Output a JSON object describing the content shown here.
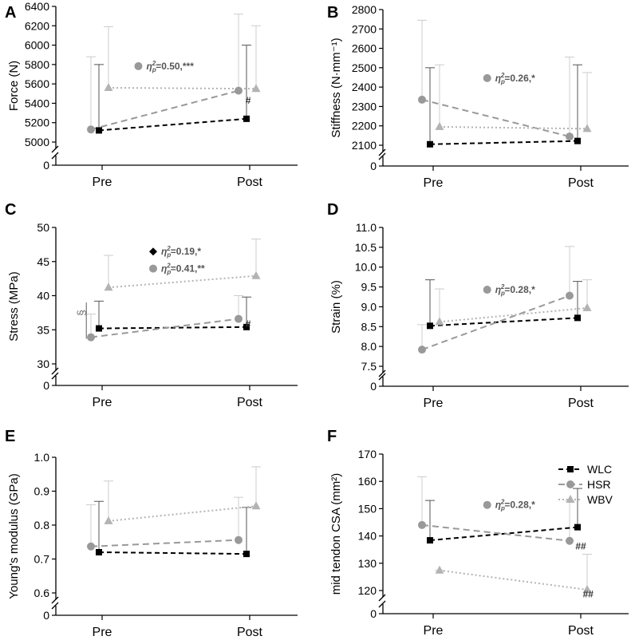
{
  "colors": {
    "WLC": "#000000",
    "HSR": "#999999",
    "WBV": "#b3b3b3",
    "axis": "#000000"
  },
  "legend_entries": [
    "WLC",
    "HSR",
    "WBV"
  ],
  "chart_data": [
    {
      "type": "line",
      "panel": "A",
      "ylabel": "Force (N)",
      "categories": [
        "Pre",
        "Post"
      ],
      "ylim": [
        5000,
        6400
      ],
      "yticks": [
        5000,
        5200,
        5400,
        5600,
        5800,
        6000,
        6200,
        6400
      ],
      "break_zero": "0",
      "series": [
        {
          "name": "WLC",
          "values": [
            5120,
            5240
          ],
          "errors": [
            5800,
            6000
          ]
        },
        {
          "name": "HSR",
          "values": [
            5130,
            5530
          ],
          "errors": [
            5880,
            6320
          ]
        },
        {
          "name": "WBV",
          "values": [
            5560,
            5550
          ],
          "errors": [
            6190,
            6200
          ]
        }
      ],
      "annotations": [
        {
          "text": "ηp²=0.50,***",
          "marker": "HSR",
          "data_x": 0.3,
          "data_y": 5750
        },
        {
          "text": "#",
          "data_x": 0.99,
          "data_y": 5395
        }
      ]
    },
    {
      "type": "line",
      "panel": "B",
      "ylabel": "Stiffness (N·mm⁻¹)",
      "categories": [
        "Pre",
        "Post"
      ],
      "ylim": [
        2100,
        2800
      ],
      "yticks": [
        2100,
        2200,
        2300,
        2400,
        2500,
        2600,
        2700,
        2800
      ],
      "break_zero": "0",
      "series": [
        {
          "name": "WLC",
          "values": [
            2105,
            2122
          ],
          "errors": [
            2500,
            2515
          ]
        },
        {
          "name": "HSR",
          "values": [
            2335,
            2145
          ],
          "errors": [
            2745,
            2555
          ]
        },
        {
          "name": "WBV",
          "values": [
            2195,
            2185
          ],
          "errors": [
            2515,
            2475
          ]
        }
      ],
      "annotations": [
        {
          "text": "ηp²=0.26,*",
          "marker": "HSR",
          "data_x": 0.42,
          "data_y": 2430
        }
      ]
    },
    {
      "type": "line",
      "panel": "C",
      "ylabel": "Stress (MPa)",
      "categories": [
        "Pre",
        "Post"
      ],
      "ylim": [
        30,
        50
      ],
      "yticks": [
        30,
        35,
        40,
        45,
        50
      ],
      "break_zero": "0",
      "series": [
        {
          "name": "WLC",
          "values": [
            35.2,
            35.4
          ],
          "errors": [
            39.2,
            39.8
          ]
        },
        {
          "name": "HSR",
          "values": [
            33.9,
            36.6
          ],
          "errors": [
            37.3,
            40.0
          ]
        },
        {
          "name": "WBV",
          "values": [
            41.2,
            42.9
          ],
          "errors": [
            45.9,
            48.3
          ]
        }
      ],
      "annotations": [
        {
          "text": "ηp²=0.19,*",
          "marker": "WLC",
          "data_x": 0.4,
          "data_y": 46.0
        },
        {
          "text": "ηp²=0.41,**",
          "marker": "HSR",
          "data_x": 0.4,
          "data_y": 43.5
        },
        {
          "text": "#",
          "data_x": 0.99,
          "data_y": 35.4
        },
        {
          "text": "§",
          "data_x": -0.15,
          "data_y": 37.5
        }
      ]
    },
    {
      "type": "line",
      "panel": "D",
      "ylabel": "Strain (%)",
      "categories": [
        "Pre",
        "Post"
      ],
      "ylim": [
        7.5,
        11.0
      ],
      "yticks": [
        7.5,
        8.0,
        8.5,
        9.0,
        9.5,
        10.0,
        10.5,
        11.0
      ],
      "break_zero": "0",
      "series": [
        {
          "name": "WLC",
          "values": [
            8.52,
            8.72
          ],
          "errors": [
            9.68,
            9.64
          ]
        },
        {
          "name": "HSR",
          "values": [
            7.92,
            9.28
          ],
          "errors": [
            8.55,
            10.52
          ]
        },
        {
          "name": "WBV",
          "values": [
            8.62,
            8.97
          ],
          "errors": [
            9.45,
            9.68
          ]
        }
      ],
      "annotations": [
        {
          "text": "ηp²=0.28,*",
          "marker": "HSR",
          "data_x": 0.42,
          "data_y": 9.35
        }
      ]
    },
    {
      "type": "line",
      "panel": "E",
      "ylabel": "Young's modulus (GPa)",
      "categories": [
        "Pre",
        "Post"
      ],
      "ylim": [
        0.6,
        1.0
      ],
      "yticks": [
        0.6,
        0.7,
        0.8,
        0.9,
        1.0
      ],
      "break_zero": "0",
      "series": [
        {
          "name": "WLC",
          "values": [
            0.72,
            0.715
          ],
          "errors": [
            0.87,
            0.852
          ]
        },
        {
          "name": "HSR",
          "values": [
            0.737,
            0.756
          ],
          "errors": [
            0.86,
            0.882
          ]
        },
        {
          "name": "WBV",
          "values": [
            0.812,
            0.856
          ],
          "errors": [
            0.93,
            0.972
          ]
        }
      ],
      "annotations": []
    },
    {
      "type": "line",
      "panel": "F",
      "ylabel": "mid tendon CSA (mm²)",
      "categories": [
        "Pre",
        "Post"
      ],
      "ylim": [
        120,
        170
      ],
      "yticks": [
        120,
        130,
        140,
        150,
        160,
        170
      ],
      "break_zero": "0",
      "series": [
        {
          "name": "WLC",
          "values": [
            138.4,
            143.2
          ],
          "errors": [
            153.0,
            157.4
          ]
        },
        {
          "name": "HSR",
          "values": [
            144.0,
            138.2
          ],
          "errors": [
            161.7,
            152.8
          ]
        },
        {
          "name": "WBV",
          "values": [
            127.4,
            120.3
          ],
          "errors": [
            127.4,
            133.3
          ]
        }
      ],
      "annotations": [
        {
          "text": "ηp²=0.28,*",
          "marker": "HSR",
          "data_x": 0.42,
          "data_y": 150.2
        },
        {
          "text": "##",
          "data_x": 1.0,
          "data_y": 135.0
        },
        {
          "text": "##",
          "data_x": 1.05,
          "data_y": 117.5
        }
      ],
      "legend": "top-right"
    }
  ]
}
